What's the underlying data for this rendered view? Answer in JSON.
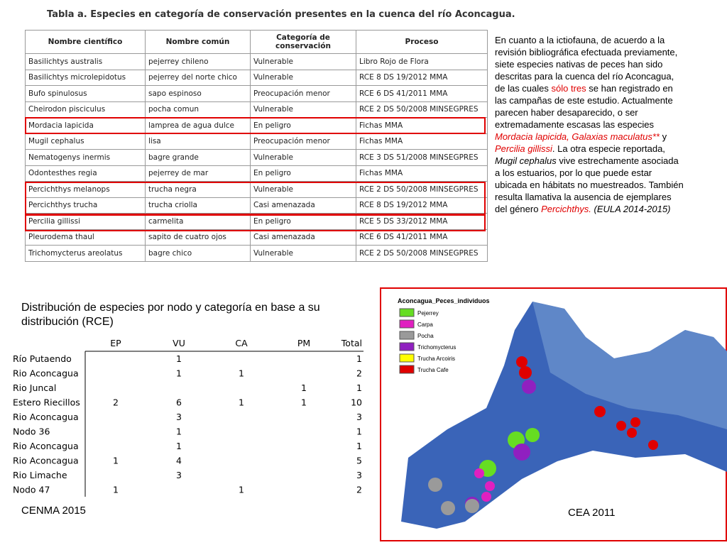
{
  "table_a": {
    "title": "Tabla a. Especies en categoría de conservación presentes en la cuenca del río Aconcagua.",
    "headers": [
      "Nombre científico",
      "Nombre común",
      "Categoría de conservación",
      "Proceso"
    ],
    "rows": [
      [
        "Basilichtys australis",
        "pejerrey chileno",
        "Vulnerable",
        "Libro Rojo de Flora"
      ],
      [
        "Basilichtys microlepidotus",
        "pejerrey del norte chico",
        "Vulnerable",
        "RCE 8 DS 19/2012 MMA"
      ],
      [
        "Bufo spinulosus",
        "sapo espinoso",
        "Preocupación menor",
        "RCE 6 DS 41/2011 MMA"
      ],
      [
        "Cheirodon pisciculus",
        "pocha comun",
        "Vulnerable",
        "RCE 2 DS 50/2008 MINSEGPRES"
      ],
      [
        "Mordacia lapicida",
        "lamprea de agua dulce",
        "En peligro",
        "Fichas MMA"
      ],
      [
        "Mugil cephalus",
        "lisa",
        "Preocupación menor",
        "Fichas MMA"
      ],
      [
        "Nematogenys inermis",
        "bagre grande",
        "Vulnerable",
        "RCE 3 DS 51/2008 MINSEGPRES"
      ],
      [
        "Odontesthes regia",
        "pejerrey de mar",
        "En peligro",
        "Fichas MMA"
      ],
      [
        "Percichthys  melanops",
        "trucha negra",
        "Vulnerable",
        "RCE 2 DS 50/2008 MINSEGPRES"
      ],
      [
        "Percichthys  trucha",
        "trucha criolla",
        "Casi amenazada",
        "RCE 8 DS 19/2012 MMA"
      ],
      [
        "Percilia gillissi",
        "carmelita",
        "En peligro",
        "RCE 5 DS 33/2012 MMA"
      ],
      [
        "Pleurodema thaul",
        "sapito de cuatro ojos",
        "Casi amenazada",
        "RCE 6 DS 41/2011 MMA"
      ],
      [
        "Trichomycterus areolatus",
        "bagre chico",
        "Vulnerable",
        "RCE 2 DS 50/2008 MINSEGPRES"
      ]
    ]
  },
  "paragraph": [
    {
      "text": "En cuanto a la ictiofauna, de acuerdo a la revisión bibliográfica efectuada previamente, siete especies nativas de peces han sido descritas para la cuenca del río Aconcagua, de las cuales "
    },
    {
      "text": "sólo tres",
      "color": "#e00000"
    },
    {
      "text": " se han registrado en las campañas de este estudio. Actualmente parecen haber desaparecido, o ser extremadamente escasas las especies "
    },
    {
      "text": "Mordacia lapicida, Galaxias maculatus**",
      "color": "#e00000",
      "italic": true
    },
    {
      "text": " y "
    },
    {
      "text": "Percilia gillissi",
      "color": "#e00000",
      "italic": true
    },
    {
      "text": ". La otra especie reportada, "
    },
    {
      "text": "Mugil cephalus",
      "italic": true
    },
    {
      "text": " vive estrechamente asociada a los estuarios, por lo que puede estar ubicada en hábitats no muestreados. También resulta llamativa la ausencia de ejemplares del género "
    },
    {
      "text": "Percichthys.",
      "color": "#e00000",
      "italic": true
    },
    {
      "text": " (EULA 2014-2015)",
      "italic": true
    }
  ],
  "table_b": {
    "title": "Distribución de especies por nodo y categoría en base a su distribución (RCE)",
    "headers": [
      null,
      "EP",
      "VU",
      "CA",
      "PM",
      "Total"
    ],
    "rows": [
      [
        "Río Putaendo",
        null,
        1,
        null,
        null,
        1
      ],
      [
        "Rio Aconcagua",
        null,
        1,
        1,
        null,
        2
      ],
      [
        "Rio Juncal",
        null,
        null,
        null,
        1,
        1
      ],
      [
        "Estero Riecillos",
        2,
        6,
        1,
        1,
        10
      ],
      [
        "Rio Aconcagua",
        null,
        3,
        null,
        null,
        3
      ],
      [
        "Nodo 36",
        null,
        1,
        null,
        null,
        1
      ],
      [
        "Rio Aconcagua",
        null,
        1,
        null,
        null,
        1
      ],
      [
        "Rio Aconcagua",
        1,
        4,
        null,
        null,
        5
      ],
      [
        "Rio Limache",
        null,
        3,
        null,
        null,
        3
      ],
      [
        "Nodo 47",
        1,
        null,
        1,
        null,
        2
      ]
    ]
  },
  "source_left": "CENMA 2015",
  "map": {
    "legend_title": "Aconcagua_Peces_individuos",
    "legend": [
      {
        "name": "Pejerrey",
        "color": "#66dd22"
      },
      {
        "name": "Carpa",
        "color": "#e020c0"
      },
      {
        "name": "Pocha",
        "color": "#9a9a9a"
      },
      {
        "name": "Trichomycterus",
        "color": "#9020c0"
      },
      {
        "name": "Trucha Arcoiris",
        "color": "#ffff00"
      },
      {
        "name": "Trucha Cafe",
        "color": "#e00000"
      }
    ],
    "caption": "CEA 2011"
  }
}
